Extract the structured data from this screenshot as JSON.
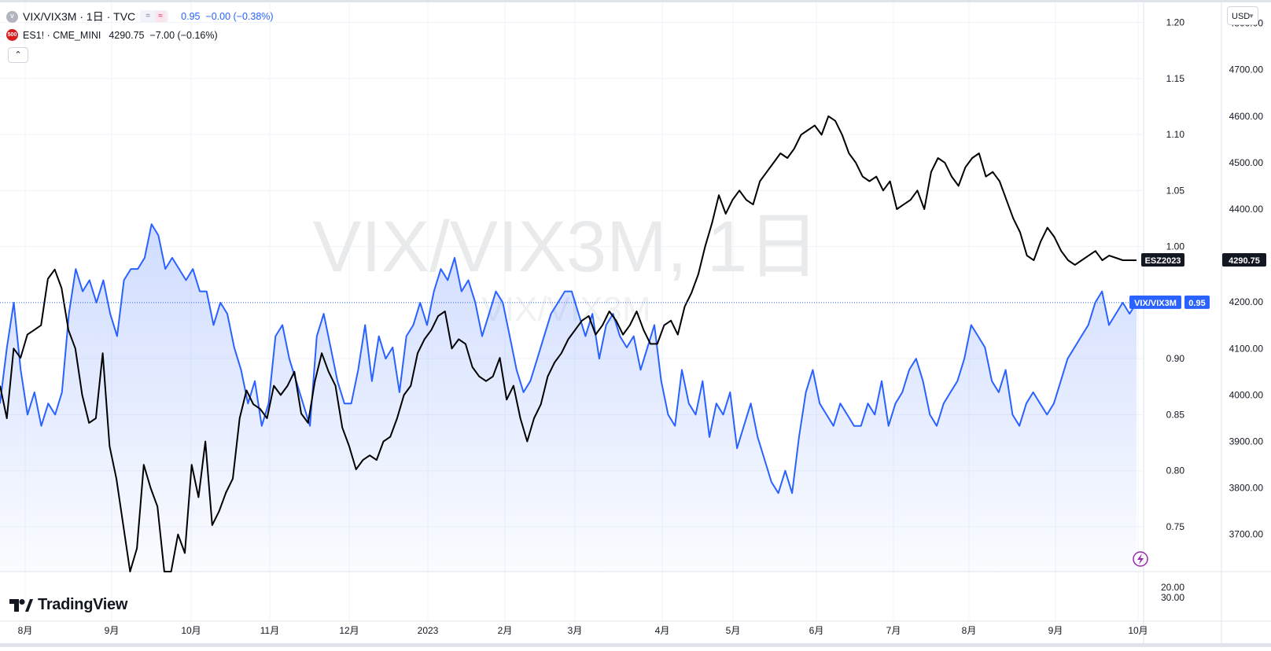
{
  "header": {
    "symbol_badge": "V",
    "symbol_title": "VIX/VIX3M · 1日 · TVC",
    "pill_icons": [
      "minus-icon",
      "wave-icon"
    ],
    "pill_symbols": [
      "=",
      "≈"
    ],
    "main_values": "0.95  −0.00 (−0.38%)",
    "overlay_badge": "500",
    "overlay_title": "ES1! · CME_MINI",
    "overlay_values": "4290.75  −7.00 (−0.16%)",
    "collapse_glyph": "⌃"
  },
  "watermark": {
    "main": "VIX/VIX3M, 1日",
    "sub": "VIX/VIX3M"
  },
  "brand": {
    "text": "TradingView",
    "glyph": "17"
  },
  "currency": {
    "label": "USD",
    "arrow": "▼"
  },
  "colors": {
    "main_series": "#2962ff",
    "main_fill": "rgba(41,98,255,0.15)",
    "overlay_series": "#000000",
    "grid": "#f0f3fa",
    "text": "#131722",
    "price_line": "#2962ff",
    "lightning": "#9c27b0",
    "overlay_badge_bg": "#d81e1e",
    "symbol_badge_bg": "#b2b5be"
  },
  "chart_data": {
    "type": "line",
    "series": [
      {
        "name": "VIX/VIX3M",
        "axis": "left",
        "color": "#2962ff",
        "values": [
          0.86,
          0.91,
          0.95,
          0.89,
          0.85,
          0.87,
          0.84,
          0.86,
          0.85,
          0.87,
          0.94,
          0.98,
          0.96,
          0.97,
          0.95,
          0.97,
          0.94,
          0.92,
          0.97,
          0.98,
          0.98,
          0.99,
          1.02,
          1.01,
          0.98,
          0.99,
          0.98,
          0.97,
          0.98,
          0.96,
          0.96,
          0.93,
          0.95,
          0.94,
          0.91,
          0.89,
          0.86,
          0.88,
          0.84,
          0.86,
          0.92,
          0.93,
          0.9,
          0.88,
          0.86,
          0.84,
          0.92,
          0.94,
          0.91,
          0.88,
          0.86,
          0.86,
          0.89,
          0.93,
          0.88,
          0.92,
          0.9,
          0.91,
          0.87,
          0.92,
          0.93,
          0.95,
          0.93,
          0.96,
          0.98,
          0.97,
          0.99,
          0.96,
          0.97,
          0.95,
          0.92,
          0.94,
          0.96,
          0.95,
          0.92,
          0.89,
          0.87,
          0.88,
          0.9,
          0.92,
          0.94,
          0.95,
          0.96,
          0.96,
          0.94,
          0.92,
          0.94,
          0.9,
          0.93,
          0.94,
          0.92,
          0.91,
          0.92,
          0.89,
          0.91,
          0.93,
          0.88,
          0.85,
          0.84,
          0.89,
          0.86,
          0.85,
          0.88,
          0.83,
          0.86,
          0.85,
          0.87,
          0.82,
          0.84,
          0.86,
          0.83,
          0.81,
          0.79,
          0.78,
          0.8,
          0.78,
          0.83,
          0.87,
          0.89,
          0.86,
          0.85,
          0.84,
          0.86,
          0.85,
          0.84,
          0.84,
          0.86,
          0.85,
          0.88,
          0.84,
          0.86,
          0.87,
          0.89,
          0.9,
          0.88,
          0.85,
          0.84,
          0.86,
          0.87,
          0.88,
          0.9,
          0.93,
          0.92,
          0.91,
          0.88,
          0.87,
          0.89,
          0.85,
          0.84,
          0.86,
          0.87,
          0.86,
          0.85,
          0.86,
          0.88,
          0.9,
          0.91,
          0.92,
          0.93,
          0.95,
          0.96,
          0.93,
          0.94,
          0.95,
          0.94,
          0.95
        ]
      },
      {
        "name": "ES1!",
        "axis": "right",
        "color": "#000000",
        "values": [
          4020,
          3950,
          4100,
          4080,
          4130,
          4140,
          4150,
          4250,
          4270,
          4230,
          4140,
          4100,
          4000,
          3940,
          3950,
          4090,
          3890,
          3820,
          3720,
          3620,
          3670,
          3850,
          3800,
          3760,
          3620,
          3620,
          3700,
          3660,
          3850,
          3780,
          3900,
          3720,
          3750,
          3790,
          3820,
          3950,
          4010,
          3980,
          3970,
          3950,
          4020,
          4000,
          4020,
          4050,
          3960,
          3940,
          4030,
          4090,
          4050,
          4020,
          3930,
          3890,
          3840,
          3860,
          3870,
          3860,
          3900,
          3910,
          3950,
          4000,
          4020,
          4090,
          4120,
          4140,
          4170,
          4180,
          4100,
          4120,
          4110,
          4060,
          4040,
          4030,
          4040,
          4080,
          3990,
          4020,
          3950,
          3900,
          3950,
          3980,
          4040,
          4070,
          4090,
          4120,
          4140,
          4160,
          4170,
          4130,
          4150,
          4180,
          4160,
          4130,
          4150,
          4180,
          4140,
          4110,
          4110,
          4150,
          4160,
          4130,
          4190,
          4220,
          4260,
          4320,
          4370,
          4430,
          4390,
          4420,
          4440,
          4420,
          4410,
          4460,
          4480,
          4500,
          4520,
          4510,
          4530,
          4560,
          4570,
          4580,
          4560,
          4600,
          4590,
          4560,
          4520,
          4500,
          4470,
          4460,
          4470,
          4440,
          4460,
          4400,
          4410,
          4420,
          4440,
          4400,
          4480,
          4510,
          4500,
          4470,
          4450,
          4490,
          4510,
          4520,
          4470,
          4480,
          4460,
          4420,
          4380,
          4350,
          4300,
          4290,
          4330,
          4360,
          4340,
          4310,
          4290,
          4280,
          4290,
          4300,
          4310,
          4290,
          4300,
          4295,
          4290,
          4290,
          4290
        ]
      }
    ],
    "left_axis": {
      "ylim": [
        0.71,
        1.22
      ],
      "ticks": [
        "1.20",
        "1.15",
        "1.10",
        "1.05",
        "1.00",
        "0.90",
        "0.85",
        "0.80",
        "0.75"
      ]
    },
    "right_axis": {
      "ylim": [
        3620,
        4850
      ],
      "ticks": [
        "4800.00",
        "4700.00",
        "4600.00",
        "4500.00",
        "4400.00",
        "4200.00",
        "4100.00",
        "4000.00",
        "3900.00",
        "3800.00",
        "3700.00"
      ]
    },
    "volume_axis": {
      "ticks": [
        "20.00",
        "30.00"
      ]
    },
    "x_ticks": [
      "8月",
      "9月",
      "10月",
      "11月",
      "12月",
      "2023",
      "2月",
      "3月",
      "4月",
      "5月",
      "6月",
      "7月",
      "8月",
      "9月",
      "10月"
    ],
    "last_labels": [
      {
        "series": "ES1!",
        "name_label": "ESZ2023",
        "value_label": "4290.75"
      },
      {
        "series": "VIX/VIX3M",
        "name_label": "VIX/VIX3M",
        "value_label": "0.95"
      }
    ],
    "grid": true
  }
}
